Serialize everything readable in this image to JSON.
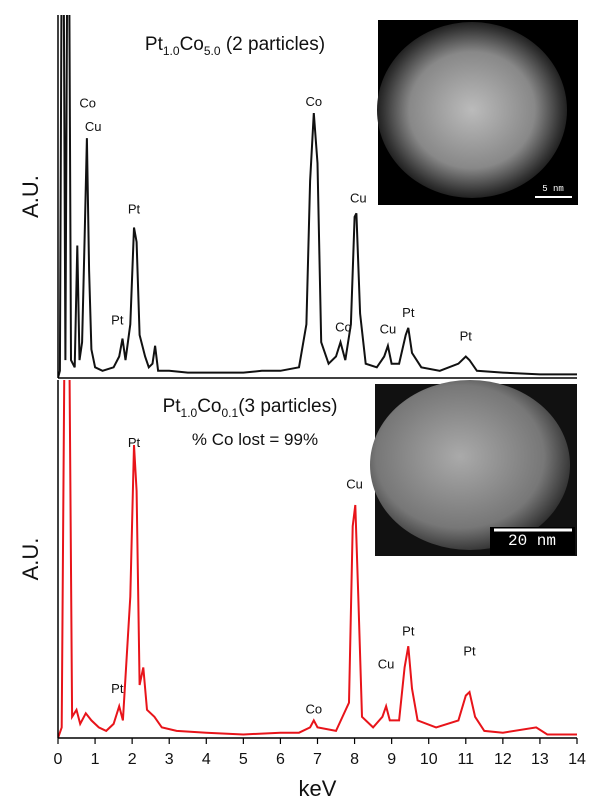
{
  "chart_data": [
    {
      "type": "line",
      "title": [
        "Pt",
        "1.0",
        "Co",
        "5.0",
        " (2 particles)"
      ],
      "y_label": "A.U.",
      "image_scale": "5 nm",
      "xlim": [
        0,
        14
      ],
      "ylim": [
        0,
        100
      ],
      "x": [
        0,
        0.05,
        0.1,
        0.15,
        0.2,
        0.25,
        0.3,
        0.35,
        0.45,
        0.52,
        0.58,
        0.65,
        0.72,
        0.78,
        0.84,
        0.9,
        1.0,
        1.2,
        1.5,
        1.65,
        1.74,
        1.82,
        1.95,
        2.05,
        2.12,
        2.2,
        2.35,
        2.45,
        2.55,
        2.62,
        2.7,
        3.0,
        3.5,
        4,
        4.5,
        5,
        5.5,
        6,
        6.5,
        6.7,
        6.8,
        6.9,
        7.0,
        7.1,
        7.3,
        7.5,
        7.62,
        7.75,
        7.9,
        8.0,
        8.05,
        8.15,
        8.3,
        8.6,
        8.8,
        8.9,
        9.0,
        9.2,
        9.38,
        9.45,
        9.55,
        9.8,
        10.3,
        10.8,
        11.0,
        11.1,
        11.3,
        12,
        13,
        14
      ],
      "series": [
        {
          "color": "#111111",
          "values": [
            0,
            2,
            120,
            120,
            5,
            120,
            120,
            5,
            3,
            37,
            5,
            10,
            40,
            67,
            30,
            8,
            3,
            2,
            3,
            6,
            11,
            5,
            15,
            42,
            38,
            12,
            6,
            3,
            4,
            9,
            2,
            2,
            1.5,
            1.5,
            1.5,
            1.5,
            2,
            2,
            3,
            15,
            55,
            74,
            60,
            10,
            4,
            6,
            10,
            5,
            15,
            45,
            46,
            18,
            4,
            3,
            6,
            9,
            4,
            4,
            12,
            14,
            7,
            3,
            2,
            4,
            6,
            5,
            2,
            1.5,
            1,
            1
          ]
        }
      ],
      "annotations": [
        {
          "text": "Co",
          "x": 0.8,
          "y": 75.5
        },
        {
          "text": "Cu",
          "x": 0.95,
          "y": 69
        },
        {
          "text": "Pt",
          "x": 2.05,
          "y": 46
        },
        {
          "text": "Pt",
          "x": 1.6,
          "y": 15
        },
        {
          "text": "Co",
          "x": 6.9,
          "y": 76
        },
        {
          "text": "Co",
          "x": 7.7,
          "y": 13
        },
        {
          "text": "Cu",
          "x": 8.1,
          "y": 49
        },
        {
          "text": "Cu",
          "x": 8.9,
          "y": 12.5
        },
        {
          "text": "Pt",
          "x": 9.45,
          "y": 17
        },
        {
          "text": "Pt",
          "x": 11.0,
          "y": 10.5
        }
      ]
    },
    {
      "type": "line",
      "title": [
        "Pt",
        "1.0",
        "Co",
        "0.1",
        "(3 particles)"
      ],
      "subtitle": "% Co lost = 99%",
      "y_label": "A.U.",
      "image_scale": "20 nm",
      "x_label": "keV",
      "xlim": [
        0,
        14
      ],
      "ylim": [
        0,
        100
      ],
      "xticks": [
        0,
        1,
        2,
        3,
        4,
        5,
        6,
        7,
        8,
        9,
        10,
        11,
        12,
        13,
        14
      ],
      "x": [
        0,
        0.1,
        0.18,
        0.3,
        0.38,
        0.5,
        0.6,
        0.75,
        0.9,
        1.1,
        1.3,
        1.5,
        1.65,
        1.75,
        1.95,
        2.05,
        2.12,
        2.2,
        2.3,
        2.4,
        2.6,
        2.8,
        3.2,
        4,
        5,
        6,
        6.5,
        6.8,
        6.9,
        7.0,
        7.5,
        7.85,
        7.95,
        8.02,
        8.1,
        8.2,
        8.5,
        8.75,
        8.85,
        8.95,
        9.2,
        9.35,
        9.45,
        9.55,
        9.7,
        10.2,
        10.8,
        11.0,
        11.1,
        11.25,
        11.5,
        12,
        12.9,
        13.2,
        14
      ],
      "series": [
        {
          "color": "#e8141a",
          "values": [
            0,
            3,
            120,
            120,
            6,
            8,
            4,
            7,
            5,
            3,
            2,
            4,
            9,
            5,
            40,
            83,
            70,
            15,
            20,
            8,
            6,
            3,
            2,
            1.5,
            1,
            1.5,
            1.5,
            3,
            5,
            3,
            2,
            10,
            60,
            66,
            40,
            6,
            3,
            6,
            9,
            5,
            5,
            20,
            26,
            14,
            5,
            3,
            5,
            12,
            13,
            6,
            2,
            1.5,
            3,
            1,
            1
          ]
        }
      ],
      "annotations": [
        {
          "text": "Pt",
          "x": 2.05,
          "y": 82.5
        },
        {
          "text": "Pt",
          "x": 1.6,
          "y": 12.7
        },
        {
          "text": "Co",
          "x": 6.9,
          "y": 7
        },
        {
          "text": "Cu",
          "x": 8.0,
          "y": 70.7
        },
        {
          "text": "Cu",
          "x": 8.85,
          "y": 19.7
        },
        {
          "text": "Pt",
          "x": 9.45,
          "y": 29
        },
        {
          "text": "Pt",
          "x": 11.1,
          "y": 23.4
        }
      ]
    }
  ]
}
